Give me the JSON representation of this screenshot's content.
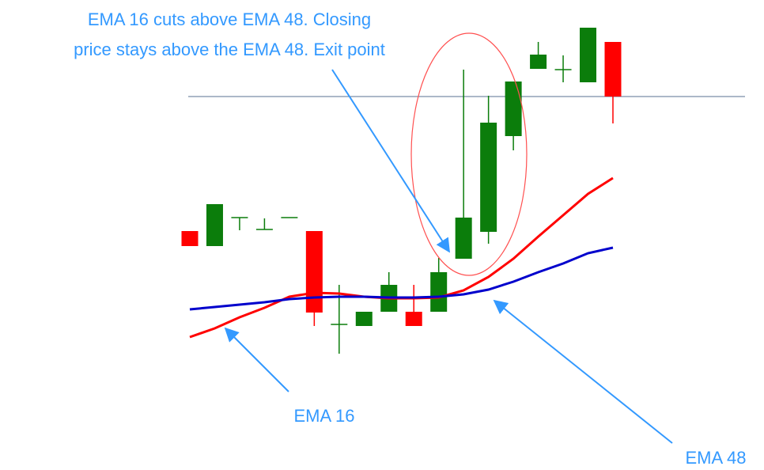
{
  "chart_data": {
    "type": "candlestick",
    "ylim": [
      0,
      600
    ],
    "up_color": "#0b7d0b",
    "down_color": "#ff0000",
    "open": [
      308,
      289,
      325,
      310,
      325,
      308,
      190,
      188,
      206,
      206,
      206,
      273,
      307,
      428,
      513,
      512,
      496,
      547
    ],
    "close": [
      289,
      342,
      325,
      310,
      325,
      205,
      190,
      206,
      240,
      188,
      256,
      325,
      445,
      497,
      531,
      512,
      565,
      478
    ],
    "high": [
      308,
      342,
      325,
      324,
      325,
      308,
      240,
      206,
      256,
      240,
      274,
      512,
      479,
      497,
      547,
      530,
      565,
      547
    ],
    "low": [
      289,
      289,
      309,
      310,
      325,
      188,
      153,
      188,
      206,
      188,
      206,
      273,
      292,
      410,
      513,
      496,
      496,
      444
    ],
    "series": [
      {
        "name": "EMA 16",
        "color": "#ff0000",
        "values": [
          174,
          185,
          199,
          211,
          225,
          230,
          229,
          225,
          223,
          223,
          224,
          233,
          250,
          273,
          301,
          328,
          355,
          375
        ]
      },
      {
        "name": "EMA 48",
        "color": "#0000cc",
        "values": [
          209,
          212,
          215,
          218,
          222,
          224,
          225,
          225,
          224,
          224,
          225,
          228,
          234,
          244,
          256,
          267,
          280,
          287
        ]
      }
    ],
    "reference_line": 478,
    "annotations": [
      "EMA 16 cuts above EMA 48. Closing",
      "price stays above the EMA 48. Exit point"
    ]
  }
}
